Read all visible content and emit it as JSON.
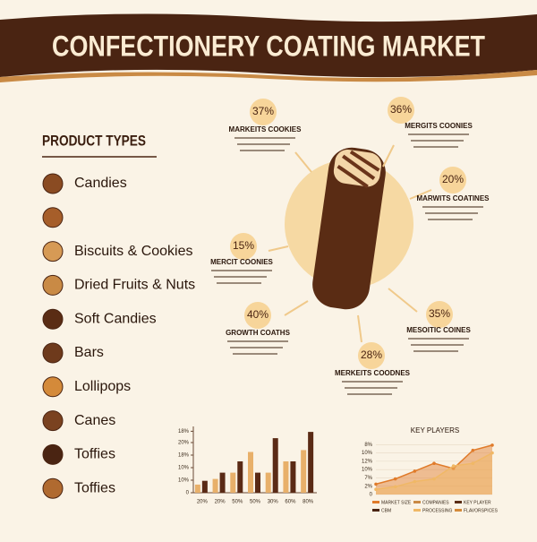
{
  "header": {
    "title": "CONFECTIONERY COATING MARKET"
  },
  "product_types": {
    "title": "PRODUCT TYPES",
    "items": [
      "Candies",
      null,
      "Biscuits & Cookies",
      "Dried Fruits & Nuts",
      "Soft Candies",
      "Bars",
      "Lollipops",
      "Canes",
      "Toffies",
      "Toffies"
    ]
  },
  "callouts": [
    {
      "percent": "37%",
      "title": "MARKEITS COOKIES"
    },
    {
      "percent": "36%",
      "title": "MERGITS COONIES"
    },
    {
      "percent": "20%",
      "title": "MARWITS COATINES"
    },
    {
      "percent": "15%",
      "title": "MERCIT COONIES"
    },
    {
      "percent": "40%",
      "title": "GROWTH COATHS"
    },
    {
      "percent": "35%",
      "title": "MESOITIC COINES"
    },
    {
      "percent": "28%",
      "title": "MERKEITS COODNES"
    }
  ],
  "bar_chart": {
    "type": "bar",
    "categories": [
      "20%",
      "20%",
      "50%",
      "50%",
      "30%",
      "60%",
      "80%"
    ],
    "series": [
      {
        "color": "#e8b06a",
        "values": [
          13,
          22,
          32,
          65,
          32,
          50,
          68
        ]
      },
      {
        "color": "#5a2a15",
        "values": [
          19,
          32,
          50,
          32,
          87,
          50,
          97
        ]
      }
    ],
    "ylim": [
      0,
      100
    ],
    "yticks": [
      0,
      {
        "value": 20,
        "label": "10%"
      },
      {
        "value": 40,
        "label": "10%"
      },
      {
        "value": 60,
        "label": "18%"
      },
      {
        "value": 80,
        "label": "20%"
      },
      {
        "value": 98,
        "label": "18%"
      }
    ]
  },
  "line_chart": {
    "type": "area",
    "title": "KEY PLAYERS",
    "x": [
      0,
      1,
      2,
      3,
      4,
      5,
      6
    ],
    "series": [
      {
        "color": "#e07b2a",
        "values": [
          20,
          30,
          45,
          60,
          50,
          85,
          95
        ]
      },
      {
        "color": "#f0b866",
        "values": [
          10,
          15,
          25,
          30,
          55,
          60,
          80
        ]
      }
    ],
    "ylim": [
      0,
      100
    ],
    "yticks": [
      0,
      {
        "value": 16,
        "label": "2%"
      },
      {
        "value": 32,
        "label": "7%"
      },
      {
        "value": 48,
        "label": "10%"
      },
      {
        "value": 64,
        "label": "12%"
      },
      {
        "value": 80,
        "label": "10%"
      },
      {
        "value": 96,
        "label": "8%"
      }
    ],
    "legend": [
      "MARKET SIZE",
      "COMPANIES",
      "KEY PLAYER",
      "CBM",
      "PROCESSING",
      "FLAVORSPICES"
    ]
  }
}
